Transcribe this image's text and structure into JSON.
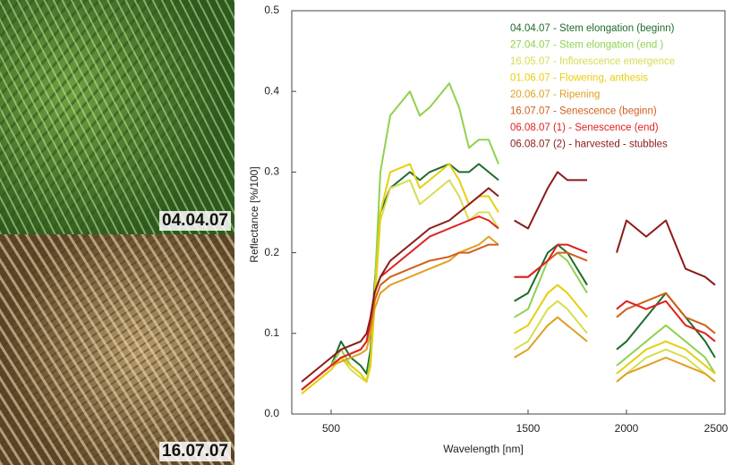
{
  "chart_data": {
    "type": "line",
    "photo_labels": [
      "04.04.07",
      "16.07.07"
    ],
    "xlabel": "Wavelength [nm]",
    "ylabel": "Reflectance [%/100]",
    "x": [
      350,
      400,
      450,
      500,
      550,
      600,
      650,
      680,
      700,
      720,
      750,
      800,
      900,
      950,
      1000,
      1100,
      1150,
      1200,
      1250,
      1300,
      1350,
      1400,
      1430,
      1500,
      1600,
      1650,
      1700,
      1800,
      1850,
      1950,
      2000,
      2100,
      2200,
      2300,
      2400,
      2450
    ],
    "xlim": [
      300,
      2500
    ],
    "xticks": [
      500,
      1500,
      2000,
      2500
    ],
    "ylim": [
      0,
      0.5
    ],
    "yticks": [
      {
        "value": 0,
        "label": "0.0"
      },
      0.1,
      0.2,
      0.3,
      0.4,
      0.5
    ],
    "series": [
      {
        "name": "04.04.07 - Stem elongation (beginn)",
        "color": "#1f6b2a",
        "values": [
          0.03,
          0.04,
          0.05,
          0.06,
          0.09,
          0.07,
          0.06,
          0.05,
          0.08,
          0.16,
          0.25,
          0.28,
          0.3,
          0.29,
          0.3,
          0.31,
          0.3,
          0.3,
          0.31,
          0.3,
          0.29,
          null,
          0.14,
          0.15,
          0.2,
          0.21,
          0.2,
          0.16,
          null,
          0.08,
          0.09,
          0.12,
          0.15,
          0.12,
          0.09,
          0.07
        ]
      },
      {
        "name": "27.04.07 - Stem elongation (end )",
        "color": "#8fd14f",
        "values": [
          0.03,
          0.04,
          0.05,
          0.06,
          0.08,
          0.06,
          0.05,
          0.04,
          0.07,
          0.15,
          0.3,
          0.37,
          0.4,
          0.37,
          0.38,
          0.41,
          0.38,
          0.33,
          0.34,
          0.34,
          0.31,
          null,
          0.12,
          0.13,
          0.19,
          0.2,
          0.19,
          0.15,
          null,
          0.06,
          0.07,
          0.09,
          0.11,
          0.09,
          0.07,
          0.05
        ]
      },
      {
        "name": "16.05.07 - Inflorescence emergence",
        "color": "#d8dc50",
        "values": [
          0.025,
          0.035,
          0.045,
          0.055,
          0.07,
          0.055,
          0.045,
          0.04,
          0.06,
          0.13,
          0.24,
          0.28,
          0.29,
          0.26,
          0.27,
          0.29,
          0.27,
          0.24,
          0.25,
          0.25,
          0.23,
          null,
          0.08,
          0.09,
          0.13,
          0.14,
          0.13,
          0.1,
          null,
          0.04,
          0.05,
          0.07,
          0.08,
          0.07,
          0.05,
          0.04
        ]
      },
      {
        "name": "01.06.07 - Flowering, anthesis",
        "color": "#e6cf10",
        "values": [
          0.025,
          0.035,
          0.045,
          0.055,
          0.07,
          0.06,
          0.05,
          0.04,
          0.06,
          0.14,
          0.25,
          0.3,
          0.31,
          0.28,
          0.29,
          0.31,
          0.29,
          0.26,
          0.27,
          0.27,
          0.25,
          null,
          0.1,
          0.11,
          0.15,
          0.16,
          0.15,
          0.12,
          null,
          0.05,
          0.06,
          0.08,
          0.09,
          0.08,
          0.06,
          0.05
        ]
      },
      {
        "name": "20.06.07 - Ripening",
        "color": "#e0a020",
        "values": [
          0.03,
          0.04,
          0.05,
          0.06,
          0.065,
          0.07,
          0.075,
          0.08,
          0.1,
          0.13,
          0.15,
          0.16,
          0.17,
          0.175,
          0.18,
          0.19,
          0.2,
          0.205,
          0.21,
          0.22,
          0.21,
          null,
          0.07,
          0.08,
          0.11,
          0.12,
          0.11,
          0.09,
          null,
          0.04,
          0.05,
          0.06,
          0.07,
          0.06,
          0.05,
          0.04
        ]
      },
      {
        "name": "16.07.07 - Senescence (beginn)",
        "color": "#d0601e",
        "values": [
          0.03,
          0.04,
          0.05,
          0.06,
          0.07,
          0.075,
          0.08,
          0.09,
          0.11,
          0.14,
          0.16,
          0.17,
          0.18,
          0.185,
          0.19,
          0.195,
          0.2,
          0.2,
          0.205,
          0.21,
          0.21,
          null,
          0.17,
          0.17,
          0.19,
          0.2,
          0.2,
          0.19,
          null,
          0.12,
          0.13,
          0.14,
          0.15,
          0.12,
          0.11,
          0.1
        ]
      },
      {
        "name": "06.08.07 (1) - Senescence (end)",
        "color": "#e02020",
        "values": [
          0.03,
          0.04,
          0.05,
          0.06,
          0.07,
          0.075,
          0.08,
          0.09,
          0.12,
          0.15,
          0.17,
          0.18,
          0.2,
          0.21,
          0.22,
          0.23,
          0.235,
          0.24,
          0.245,
          0.24,
          0.23,
          null,
          0.17,
          0.17,
          0.19,
          0.21,
          0.21,
          0.2,
          null,
          0.13,
          0.14,
          0.13,
          0.14,
          0.11,
          0.1,
          0.09
        ]
      },
      {
        "name": "06.08.07 (2) -  harvested - stubbles",
        "color": "#8b1a1a",
        "values": [
          0.04,
          0.05,
          0.06,
          0.07,
          0.08,
          0.085,
          0.09,
          0.1,
          0.12,
          0.15,
          0.17,
          0.19,
          0.21,
          0.22,
          0.23,
          0.24,
          0.25,
          0.26,
          0.27,
          0.28,
          0.27,
          null,
          0.24,
          0.23,
          0.28,
          0.3,
          0.29,
          0.29,
          null,
          0.2,
          0.24,
          0.22,
          0.24,
          0.18,
          0.17,
          0.16
        ]
      }
    ]
  }
}
